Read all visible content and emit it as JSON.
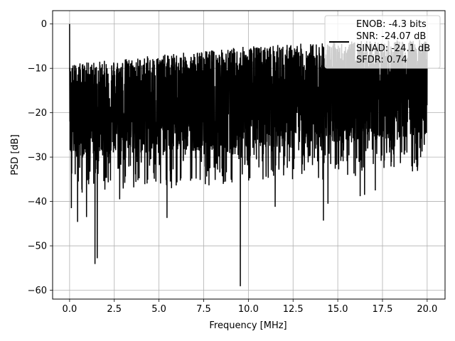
{
  "chart_data": {
    "type": "line",
    "title": "",
    "xlabel": "Frequency [MHz]",
    "ylabel": "PSD [dB]",
    "xlim": [
      -0.95,
      21.0
    ],
    "ylim": [
      -62,
      3
    ],
    "x_ticks": [
      0.0,
      2.5,
      5.0,
      7.5,
      10.0,
      12.5,
      15.0,
      17.5,
      20.0
    ],
    "x_tick_labels": [
      "0.0",
      "2.5",
      "5.0",
      "7.5",
      "10.0",
      "12.5",
      "15.0",
      "17.5",
      "20.0"
    ],
    "y_ticks": [
      0,
      -10,
      -20,
      -30,
      -40,
      -50,
      -60
    ],
    "y_tick_labels": [
      "0",
      "−10",
      "−20",
      "−30",
      "−40",
      "−50",
      "−60"
    ],
    "grid": true,
    "legend_position": "top-right",
    "series": [
      {
        "color": "#000000",
        "x_start": 0.0,
        "x_end": 20.0,
        "description_points": {
          "x": [
            0.0,
            0.02,
            0.05,
            0.1,
            0.2,
            0.3,
            0.4,
            0.6,
            0.8,
            1.0,
            1.2,
            1.4,
            1.5,
            1.7,
            2.0,
            2.5,
            3.0,
            3.5,
            4.0,
            4.5,
            5.0,
            5.5,
            6.0,
            6.5,
            7.0,
            7.5,
            8.0,
            8.5,
            9.0,
            9.5,
            10.0,
            10.5,
            11.0,
            11.5,
            12.0,
            12.5,
            13.0,
            13.5,
            14.0,
            14.5,
            15.0,
            15.5,
            16.0,
            16.5,
            17.0,
            17.5,
            18.0,
            18.5,
            19.0,
            19.5,
            20.0
          ],
          "y": [
            0.0,
            -13,
            -22,
            -15,
            -41,
            -33,
            -44,
            -26,
            -18,
            -22,
            -25,
            -54,
            -53,
            -26,
            -24,
            -23,
            -38,
            -28,
            -26,
            -25,
            -26,
            -44,
            -30,
            -27,
            -28,
            -25,
            -32,
            -31,
            -29,
            -59,
            -28,
            -30,
            -30,
            -41,
            -32,
            -38,
            -31,
            -31,
            -44,
            -32,
            -36,
            -35,
            -39,
            -42,
            -38,
            -35,
            -30,
            -34,
            -30,
            -30,
            -25
          ]
        },
        "upper_envelope_db": [
          -9,
          -7,
          -5,
          -4,
          -3.5
        ],
        "median_db": [
          -20,
          -19,
          -18,
          -17,
          -15
        ]
      }
    ],
    "deep_dips": [
      {
        "x": 0.1,
        "y": -41.5
      },
      {
        "x": 0.45,
        "y": -44.6
      },
      {
        "x": 0.7,
        "y": -38
      },
      {
        "x": 0.95,
        "y": -43.5
      },
      {
        "x": 1.42,
        "y": -54.1
      },
      {
        "x": 1.55,
        "y": -52.8
      },
      {
        "x": 2.8,
        "y": -39.5
      },
      {
        "x": 5.45,
        "y": -43.7
      },
      {
        "x": 5.7,
        "y": -37
      },
      {
        "x": 9.55,
        "y": -59.1
      },
      {
        "x": 11.5,
        "y": -41.2
      },
      {
        "x": 14.2,
        "y": -44.3
      },
      {
        "x": 14.45,
        "y": -40.5
      },
      {
        "x": 16.25,
        "y": -38.8
      },
      {
        "x": 16.5,
        "y": -38.5
      },
      {
        "x": 17.1,
        "y": -37.5
      }
    ]
  },
  "legend": {
    "lines": [
      "ENOB: -4.3 bits",
      "SNR: -24.07 dB",
      "SINAD: -24.1 dB",
      "SFDR: 0.74"
    ]
  }
}
